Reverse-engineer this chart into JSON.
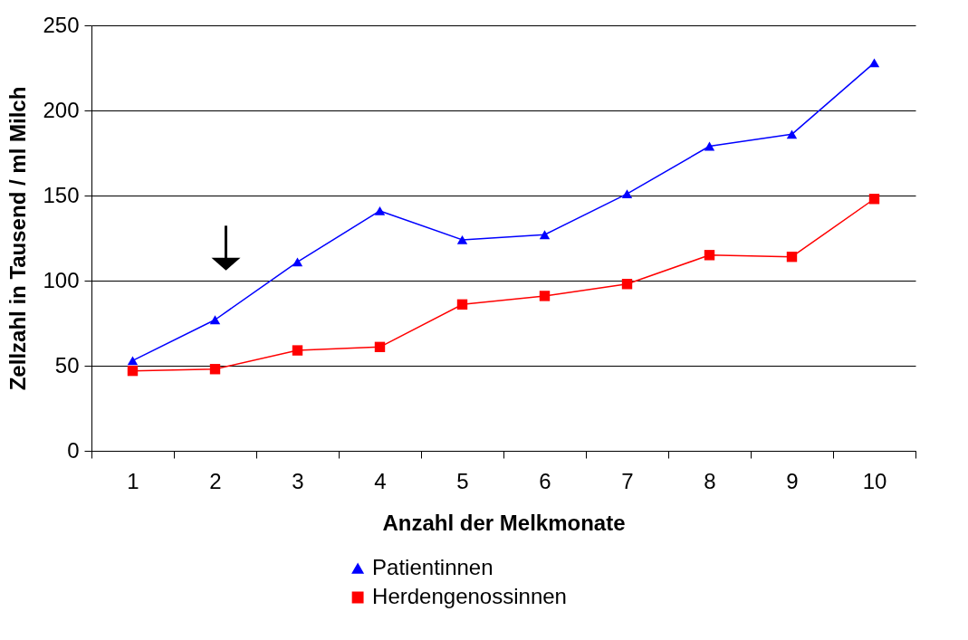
{
  "chart_data": {
    "type": "line",
    "xlabel": "Anzahl der Melkmonate",
    "ylabel": "Zellzahl in Tausend / ml Milch",
    "categories": [
      "1",
      "2",
      "3",
      "4",
      "5",
      "6",
      "7",
      "8",
      "9",
      "10"
    ],
    "series": [
      {
        "name": "Patientinnen",
        "color": "#0000ff",
        "marker": "triangle",
        "values": [
          53,
          77,
          111,
          141,
          124,
          127,
          151,
          179,
          186,
          228
        ]
      },
      {
        "name": "Herdengenossinnen",
        "color": "#ff0000",
        "marker": "square",
        "values": [
          47,
          48,
          59,
          61,
          86,
          91,
          98,
          115,
          114,
          148
        ]
      }
    ],
    "ylim": [
      0,
      250
    ],
    "yticks": [
      0,
      50,
      100,
      150,
      200,
      250
    ],
    "grid": "y",
    "legend": "bottom",
    "line_style": "solid"
  }
}
